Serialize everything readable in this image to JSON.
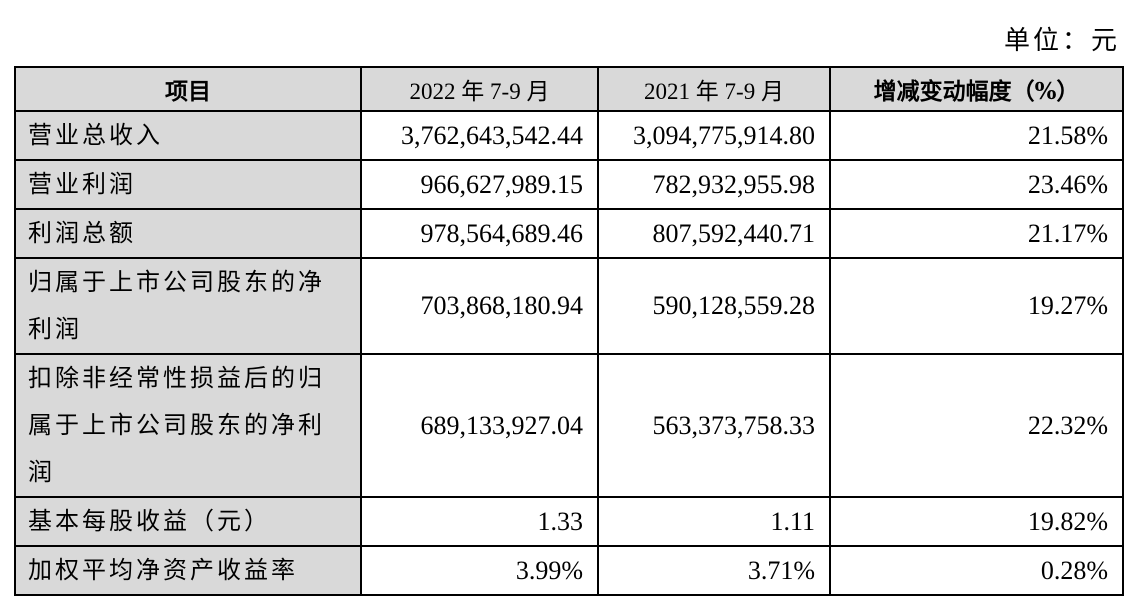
{
  "unit_label": "单位：元",
  "table": {
    "headers": [
      "项目",
      "2022 年 7-9 月",
      "2021 年 7-9 月",
      "增减变动幅度（%）"
    ],
    "rows": [
      {
        "item": "营业总收入",
        "current": "3,762,643,542.44",
        "prior": "3,094,775,914.80",
        "change": "21.58%"
      },
      {
        "item": "营业利润",
        "current": "966,627,989.15",
        "prior": "782,932,955.98",
        "change": "23.46%"
      },
      {
        "item": "利润总额",
        "current": "978,564,689.46",
        "prior": "807,592,440.71",
        "change": "21.17%"
      },
      {
        "item": "归属于上市公司股东的净利润",
        "current": "703,868,180.94",
        "prior": "590,128,559.28",
        "change": "19.27%"
      },
      {
        "item": "扣除非经常性损益后的归属于上市公司股东的净利润",
        "current": "689,133,927.04",
        "prior": "563,373,758.33",
        "change": "22.32%"
      },
      {
        "item": "基本每股收益（元）",
        "current": "1.33",
        "prior": "1.11",
        "change": "19.82%"
      },
      {
        "item": "加权平均净资产收益率",
        "current": "3.99%",
        "prior": "3.71%",
        "change": "0.28%"
      }
    ]
  }
}
